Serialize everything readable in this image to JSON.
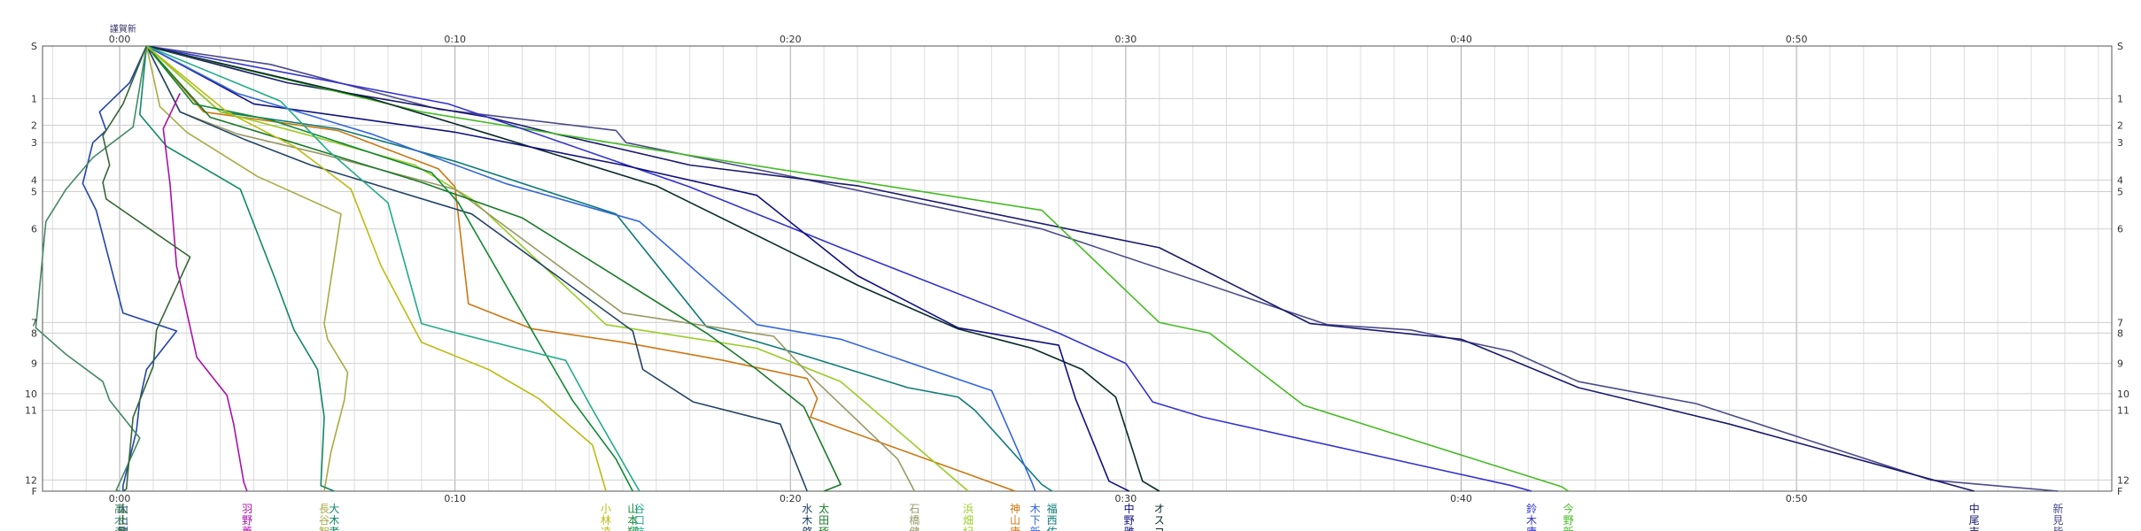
{
  "chart_data": {
    "type": "line",
    "title": "",
    "xlabel": "",
    "ylabel": "",
    "x_unit": "minutes",
    "xlim": [
      -2.3,
      59.4
    ],
    "x_ticks": [
      {
        "value": 0,
        "label": "0:00"
      },
      {
        "value": 10,
        "label": "0:10"
      },
      {
        "value": 20,
        "label": "0:20"
      },
      {
        "value": 30,
        "label": "0:30"
      },
      {
        "value": 40,
        "label": "0:40"
      },
      {
        "value": 50,
        "label": "0:50"
      }
    ],
    "x_minor_step": 1,
    "y_levels": [
      0,
      1,
      2,
      3,
      4,
      5,
      6,
      7,
      8,
      9,
      10,
      11,
      12,
      13
    ],
    "y_level_fraction": [
      0,
      0.118,
      0.178,
      0.217,
      0.301,
      0.327,
      0.411,
      0.621,
      0.645,
      0.713,
      0.781,
      0.818,
      0.975,
      1
    ],
    "y_labels_left": [
      "S",
      "1",
      "2",
      "3",
      "4",
      "5",
      "6",
      "7",
      "8",
      "9",
      "10",
      "11",
      "12",
      "F"
    ],
    "y_labels_right": [
      "S",
      "1",
      "2",
      "3",
      "4",
      "5",
      "6",
      "7",
      "8",
      "9",
      "10",
      "11",
      "12",
      "F"
    ],
    "top_marker_text": "謹賀新",
    "grid": true,
    "series": [
      {
        "name": "新見皆",
        "color": "#4b4b8c",
        "points": [
          [
            0.8,
            0
          ],
          [
            4.5,
            0.35
          ],
          [
            9.5,
            1.4
          ],
          [
            14.8,
            2.3
          ],
          [
            15.1,
            3
          ],
          [
            20,
            3.9
          ],
          [
            27.5,
            6
          ],
          [
            36,
            7.2
          ],
          [
            38.5,
            7.7
          ],
          [
            41.5,
            8.6
          ],
          [
            43.5,
            9.6
          ],
          [
            47,
            10.6
          ],
          [
            54,
            12
          ],
          [
            57.8,
            13
          ]
        ]
      },
      {
        "name": "中尾吉",
        "color": "#1a1a6e",
        "points": [
          [
            0.8,
            0
          ],
          [
            5,
            0.7
          ],
          [
            11,
            1.7
          ],
          [
            13,
            2.5
          ],
          [
            17,
            3.6
          ],
          [
            22,
            4.5
          ],
          [
            31,
            6.2
          ],
          [
            35.5,
            7.1
          ],
          [
            40,
            8.2
          ],
          [
            43.5,
            9.8
          ],
          [
            48,
            11.2
          ],
          [
            55.3,
            13
          ]
        ]
      },
      {
        "name": "今野新",
        "color": "#44bb22",
        "points": [
          [
            0.8,
            0
          ],
          [
            9,
            1.5
          ],
          [
            16,
            3.2
          ],
          [
            27.5,
            5.5
          ],
          [
            31,
            7
          ],
          [
            32.5,
            8
          ],
          [
            35.3,
            10.7
          ],
          [
            43,
            12.6
          ],
          [
            43.2,
            13
          ]
        ]
      },
      {
        "name": "鈴木唐",
        "color": "#3333cc",
        "points": [
          [
            0.8,
            0
          ],
          [
            9.8,
            1.2
          ],
          [
            12,
            2.2
          ],
          [
            17,
            4.6
          ],
          [
            21.5,
            6.2
          ],
          [
            28,
            8
          ],
          [
            30,
            9
          ],
          [
            30.8,
            10.5
          ],
          [
            32.3,
            11.1
          ],
          [
            41.5,
            12.5
          ],
          [
            42.1,
            13
          ]
        ]
      },
      {
        "name": "オスコ",
        "color": "#0a2a2a",
        "points": [
          [
            0.8,
            0
          ],
          [
            7.5,
            1
          ],
          [
            11,
            2.5
          ],
          [
            16,
            4.5
          ],
          [
            22,
            6.6
          ],
          [
            25,
            7.6
          ],
          [
            27.2,
            8.5
          ],
          [
            28.7,
            9.2
          ],
          [
            29.7,
            10.2
          ],
          [
            30.5,
            12.1
          ],
          [
            31,
            13
          ]
        ]
      },
      {
        "name": "中野雅",
        "color": "#101080",
        "points": [
          [
            0.8,
            0
          ],
          [
            4,
            1.2
          ],
          [
            10,
            2.4
          ],
          [
            15,
            3.6
          ],
          [
            19,
            5.1
          ],
          [
            22,
            6.5
          ],
          [
            25,
            7.5
          ],
          [
            28,
            8.4
          ],
          [
            28.5,
            10.3
          ],
          [
            29.5,
            12.1
          ],
          [
            30.1,
            13
          ]
        ]
      },
      {
        "name": "福西佑",
        "color": "#0e7a7a",
        "points": [
          [
            0.8,
            0
          ],
          [
            3,
            1.5
          ],
          [
            6.5,
            2.2
          ],
          [
            10,
            3.5
          ],
          [
            14.8,
            5.6
          ],
          [
            17.5,
            7.4
          ],
          [
            20.3,
            8.7
          ],
          [
            23.5,
            9.8
          ],
          [
            25,
            10.2
          ],
          [
            25.5,
            11
          ],
          [
            27.5,
            12.4
          ],
          [
            27.8,
            13
          ]
        ]
      },
      {
        "name": "木下新",
        "color": "#3366dd",
        "points": [
          [
            0.8,
            0
          ],
          [
            3.5,
            0.9
          ],
          [
            7.5,
            2.5
          ],
          [
            11.5,
            4.3
          ],
          [
            15.5,
            5.8
          ],
          [
            19,
            7.2
          ],
          [
            21.5,
            8.2
          ],
          [
            26,
            9.9
          ],
          [
            27.2,
            12.2
          ],
          [
            27.3,
            13
          ]
        ]
      },
      {
        "name": "神山康",
        "color": "#cc7711",
        "points": [
          [
            0.8,
            0
          ],
          [
            2.5,
            1.5
          ],
          [
            6.5,
            2.3
          ],
          [
            9.5,
            3.7
          ],
          [
            10,
            4.6
          ],
          [
            10.4,
            6.8
          ],
          [
            12.3,
            7.6
          ],
          [
            15,
            8.3
          ],
          [
            18,
            8.9
          ],
          [
            20.5,
            9.5
          ],
          [
            20.8,
            10.3
          ],
          [
            20.6,
            11.1
          ],
          [
            26.7,
            13
          ]
        ]
      },
      {
        "name": "浜畑紀",
        "color": "#99cc22",
        "points": [
          [
            0.8,
            0
          ],
          [
            3,
            1.5
          ],
          [
            5.5,
            2.5
          ],
          [
            8.8,
            3.6
          ],
          [
            10.5,
            5.2
          ],
          [
            14.5,
            7.2
          ],
          [
            19,
            8.5
          ],
          [
            21.5,
            9.6
          ],
          [
            25.3,
            13
          ]
        ]
      },
      {
        "name": "石橋健",
        "color": "#999966",
        "points": [
          [
            0.8,
            0
          ],
          [
            1.8,
            1.5
          ],
          [
            3.5,
            2.5
          ],
          [
            6,
            3.3
          ],
          [
            10,
            4.8
          ],
          [
            15,
            6.9
          ],
          [
            19.5,
            8.1
          ],
          [
            20.5,
            9.3
          ],
          [
            23.2,
            11.7
          ],
          [
            23.7,
            13
          ]
        ]
      },
      {
        "name": "太田琢",
        "color": "#1a7a2a",
        "points": [
          [
            0.8,
            0
          ],
          [
            2.7,
            1.7
          ],
          [
            4.5,
            2.6
          ],
          [
            9,
            4.2
          ],
          [
            12,
            5.7
          ],
          [
            17.5,
            8
          ],
          [
            19,
            9.2
          ],
          [
            20.4,
            10.8
          ],
          [
            21.5,
            12.4
          ],
          [
            21,
            13
          ]
        ]
      },
      {
        "name": "水木啓",
        "color": "#224466",
        "points": [
          [
            0.8,
            0
          ],
          [
            1.8,
            1.5
          ],
          [
            3.7,
            2.8
          ],
          [
            5.7,
            3.6
          ],
          [
            10.5,
            5.6
          ],
          [
            15.3,
            7.8
          ],
          [
            15.6,
            9.2
          ],
          [
            17.1,
            10.5
          ],
          [
            19.7,
            11.2
          ],
          [
            20.5,
            13
          ]
        ]
      },
      {
        "name": "山本翔",
        "color": "#118833",
        "points": [
          [
            0.8,
            0
          ],
          [
            2.2,
            1.2
          ],
          [
            4.5,
            1.8
          ],
          [
            9.3,
            3.8
          ],
          [
            10.1,
            5.3
          ],
          [
            12.6,
            8.5
          ],
          [
            13.5,
            10.4
          ],
          [
            14.8,
            11.7
          ],
          [
            15.3,
            13
          ]
        ]
      },
      {
        "name": "谷口航",
        "color": "#22aa88",
        "points": [
          [
            0.8,
            0
          ],
          [
            4.8,
            1.1
          ],
          [
            6.2,
            3.2
          ],
          [
            8,
            5.3
          ],
          [
            9,
            7.1
          ],
          [
            9.8,
            7.8
          ],
          [
            13.3,
            8.9
          ],
          [
            14,
            10.6
          ],
          [
            15.5,
            13
          ]
        ]
      },
      {
        "name": "小林凌",
        "color": "#bbbb11",
        "points": [
          [
            0.8,
            0
          ],
          [
            3.2,
            1.5
          ],
          [
            5.2,
            3.1
          ],
          [
            6.9,
            4.8
          ],
          [
            7.8,
            6.4
          ],
          [
            9,
            8.3
          ],
          [
            11,
            9.2
          ],
          [
            12.5,
            10.3
          ],
          [
            14.1,
            11.5
          ],
          [
            14.5,
            13
          ]
        ]
      },
      {
        "name": "長谷智",
        "color": "#aaaa44",
        "points": [
          [
            0.8,
            0
          ],
          [
            1.2,
            1.3
          ],
          [
            2,
            2.4
          ],
          [
            4.1,
            3.9
          ],
          [
            6.6,
            5.6
          ],
          [
            6.1,
            7.1
          ],
          [
            6.2,
            8.2
          ],
          [
            6.8,
            9.3
          ],
          [
            6.7,
            10.4
          ],
          [
            6.3,
            11.6
          ],
          [
            6.1,
            13
          ]
        ]
      },
      {
        "name": "大木孝",
        "color": "#118866",
        "points": [
          [
            0.8,
            0
          ],
          [
            0.6,
            1.6
          ],
          [
            1.4,
            3.1
          ],
          [
            3.6,
            4.8
          ],
          [
            4.6,
            6.5
          ],
          [
            5.2,
            7.7
          ],
          [
            5.9,
            9.2
          ],
          [
            6.1,
            11.1
          ],
          [
            6,
            12.5
          ],
          [
            6.4,
            13
          ]
        ]
      },
      {
        "name": "羽野薫",
        "color": "#aa11aa",
        "points": [
          [
            1.8,
            0.9
          ],
          [
            1.3,
            2.2
          ],
          [
            1.5,
            4.3
          ],
          [
            1.7,
            6.4
          ],
          [
            2.3,
            8.8
          ],
          [
            3.2,
            10.1
          ],
          [
            3.4,
            11.2
          ],
          [
            3.7,
            12.2
          ],
          [
            3.8,
            13
          ]
        ]
      },
      {
        "name": "大山剛",
        "color": "#2244aa",
        "points": [
          [
            0.8,
            0
          ],
          [
            0.3,
            0.7
          ],
          [
            -0.6,
            1.5
          ],
          [
            -0.4,
            2.3
          ],
          [
            -0.8,
            3
          ],
          [
            -1.1,
            4.3
          ],
          [
            -0.7,
            5.5
          ],
          [
            0.1,
            6.9
          ],
          [
            1.7,
            7.8
          ],
          [
            0.8,
            9.2
          ],
          [
            0.6,
            10.4
          ],
          [
            0.5,
            11.3
          ],
          [
            0.1,
            12.5
          ],
          [
            0.1,
            13
          ]
        ]
      },
      {
        "name": "高木森",
        "color": "#448866",
        "points": [
          [
            0.8,
            0
          ],
          [
            0.4,
            2.1
          ],
          [
            -0.8,
            3.4
          ],
          [
            -1.6,
            4.8
          ],
          [
            -2.2,
            5.8
          ],
          [
            -2.5,
            7.5
          ],
          [
            -1.6,
            8.7
          ],
          [
            -0.5,
            9.6
          ],
          [
            -0.3,
            10.4
          ],
          [
            0.6,
            11.4
          ],
          [
            -0.1,
            12.9
          ],
          [
            0,
            13
          ]
        ]
      },
      {
        "name": "山上敏",
        "color": "#336633",
        "points": [
          [
            0.8,
            0
          ],
          [
            0.1,
            1.2
          ],
          [
            -0.5,
            2.6
          ],
          [
            -0.3,
            3.6
          ],
          [
            -0.5,
            4.2
          ],
          [
            -0.4,
            5.2
          ],
          [
            2.1,
            6.3
          ],
          [
            1.1,
            7.7
          ],
          [
            1,
            9.1
          ],
          [
            0.4,
            11.1
          ],
          [
            0.2,
            12.8
          ],
          [
            0.1,
            13
          ]
        ]
      }
    ]
  }
}
